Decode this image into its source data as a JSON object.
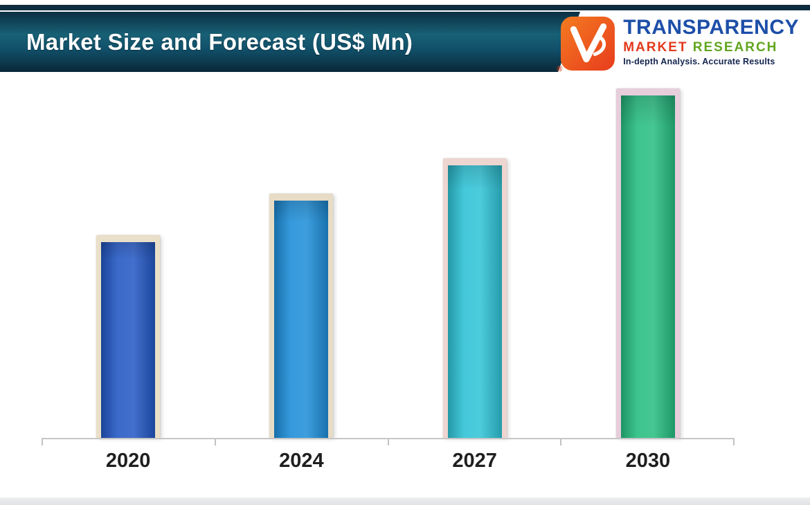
{
  "header": {
    "title": "Market Size and Forecast (US$ Mn)"
  },
  "logo": {
    "name": "TRANSPARENCY",
    "line2_word1": "MARKET",
    "line2_word2": "RESEARCH",
    "tagline": "In-depth Analysis. Accurate Results",
    "registered_mark": "®",
    "icon": "tmr-v-checkmark-icon",
    "colors": {
      "icon_orange_light": "#f47b20",
      "icon_orange_dark": "#e83c1e",
      "name_blue": "#1d4fa8",
      "market_red": "#e2391b",
      "research_green": "#61a51f",
      "tagline_navy": "#12234d"
    }
  },
  "chart_data": {
    "type": "bar",
    "title": "Market Size and Forecast (US$ Mn)",
    "categories": [
      "2020",
      "2024",
      "2027",
      "2030"
    ],
    "values": [
      58,
      70,
      80,
      100
    ],
    "value_scale": "relative bar height as % of tallest bar; no numeric y-axis shown in figure",
    "xlabel": "",
    "ylabel": "",
    "ylim": [
      0,
      100
    ],
    "grid": false,
    "legend": false,
    "bar_colors": [
      "#2458c4",
      "#1e8ed8",
      "#2fc3d6",
      "#27bd80"
    ],
    "bar_frame_colors": [
      "#eadfc8",
      "#e7dcc6",
      "#edd5d0",
      "#e7cedb"
    ]
  },
  "theme": {
    "top_strip_navy": "#0f2c3e",
    "banner_dark": "#0c2f43",
    "banner_teal": "#186075",
    "axis_color": "#c6c6c6",
    "label_color": "#1f1f1f",
    "background": "#ffffff"
  }
}
